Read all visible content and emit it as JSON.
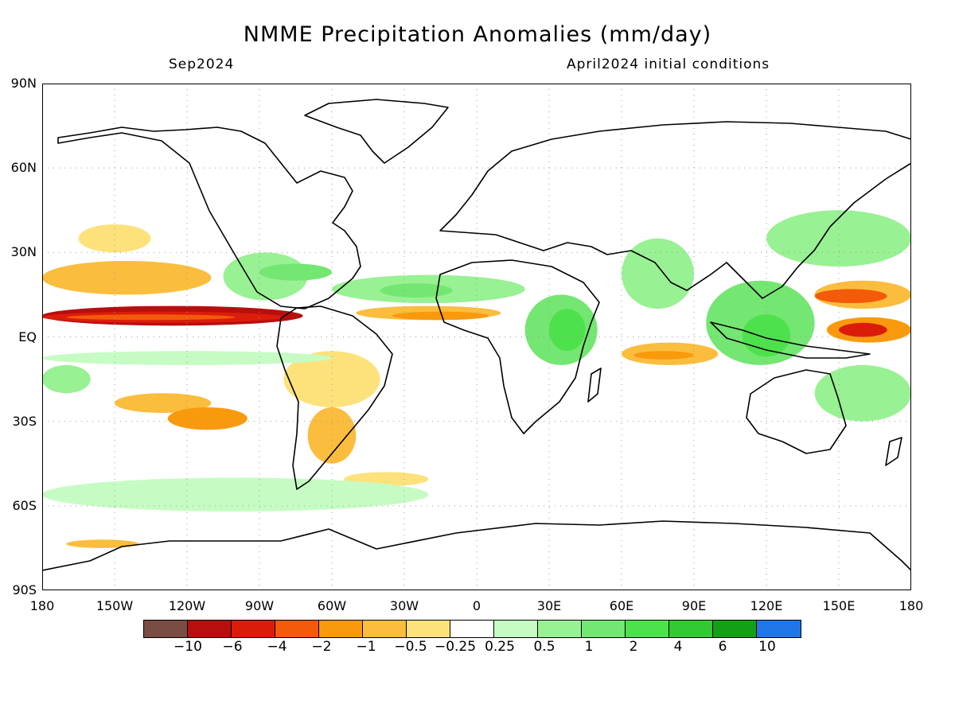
{
  "header": {
    "title": "NMME Precipitation Anomalies (mm/day)",
    "valid_month": "Sep2024",
    "initial_conditions": "April2024 initial conditions"
  },
  "axes": {
    "lat_labels": [
      "90N",
      "60N",
      "30N",
      "EQ",
      "30S",
      "60S",
      "90S"
    ],
    "lat_values": [
      90,
      60,
      30,
      0,
      -30,
      -60,
      -90
    ],
    "lon_labels": [
      "180",
      "150W",
      "120W",
      "90W",
      "60W",
      "30W",
      "0",
      "30E",
      "60E",
      "90E",
      "120E",
      "150E",
      "180"
    ],
    "lon_values": [
      -180,
      -150,
      -120,
      -90,
      -60,
      -30,
      0,
      30,
      60,
      90,
      120,
      150,
      180
    ],
    "lon_range": [
      -180,
      180
    ],
    "lat_range": [
      -90,
      90
    ],
    "grid": true
  },
  "colorbar": {
    "colors": [
      "#7a4c43",
      "#b80e0e",
      "#dc1c0a",
      "#f35a0a",
      "#f99a0d",
      "#fbbd3d",
      "#fde27c",
      "#ffffff",
      "#c6fcc4",
      "#98f193",
      "#74e672",
      "#4de24c",
      "#33c933",
      "#13a014",
      "#2076e8"
    ],
    "labels": [
      "−10",
      "−6",
      "−4",
      "−2",
      "−1",
      "−0.5",
      "−0.25",
      "0.25",
      "0.5",
      "1",
      "2",
      "4",
      "6",
      "10"
    ],
    "boundaries": [
      -10,
      -6,
      -4,
      -2,
      -1,
      -0.5,
      -0.25,
      0.25,
      0.5,
      1,
      2,
      4,
      6,
      10
    ]
  },
  "map_data": {
    "variable": "precipitation anomaly",
    "unit": "mm/day",
    "regions": [
      {
        "lon": [
          -180,
          -72
        ],
        "lat": [
          4,
          11
        ],
        "level": 1
      },
      {
        "lon": [
          -180,
          -80
        ],
        "lat": [
          5,
          9
        ],
        "level": 2
      },
      {
        "lon": [
          -170,
          -100
        ],
        "lat": [
          6,
          8
        ],
        "level": 3
      },
      {
        "lon": [
          -180,
          -110
        ],
        "lat": [
          15,
          27
        ],
        "level": 5
      },
      {
        "lon": [
          -165,
          -135
        ],
        "lat": [
          30,
          40
        ],
        "level": 6
      },
      {
        "lon": [
          -150,
          -110
        ],
        "lat": [
          -20,
          -27
        ],
        "level": 5
      },
      {
        "lon": [
          -128,
          -95
        ],
        "lat": [
          -25,
          -33
        ],
        "level": 4
      },
      {
        "lon": [
          -80,
          -40
        ],
        "lat": [
          -5,
          -25
        ],
        "level": 6
      },
      {
        "lon": [
          -70,
          -50
        ],
        "lat": [
          -25,
          -45
        ],
        "level": 5
      },
      {
        "lon": [
          -55,
          -20
        ],
        "lat": [
          -48,
          -53
        ],
        "level": 6
      },
      {
        "lon": [
          -50,
          10
        ],
        "lat": [
          6,
          11
        ],
        "level": 5
      },
      {
        "lon": [
          -35,
          5
        ],
        "lat": [
          6,
          9
        ],
        "level": 4
      },
      {
        "lon": [
          -170,
          -140
        ],
        "lat": [
          -72,
          -75
        ],
        "level": 5
      },
      {
        "lon": [
          -190,
          -20
        ],
        "lat": [
          -62,
          -50
        ],
        "level": 8
      },
      {
        "lon": [
          -180,
          -60
        ],
        "lat": [
          -5,
          -10
        ],
        "level": 8
      },
      {
        "lon": [
          -180,
          -160
        ],
        "lat": [
          -10,
          -20
        ],
        "level": 9
      },
      {
        "lon": [
          -105,
          -70
        ],
        "lat": [
          13,
          30
        ],
        "level": 9
      },
      {
        "lon": [
          -90,
          -60
        ],
        "lat": [
          20,
          26
        ],
        "level": 10
      },
      {
        "lon": [
          -60,
          20
        ],
        "lat": [
          12,
          22
        ],
        "level": 9
      },
      {
        "lon": [
          -40,
          -10
        ],
        "lat": [
          14,
          19
        ],
        "level": 10
      },
      {
        "lon": [
          20,
          50
        ],
        "lat": [
          -10,
          15
        ],
        "level": 10
      },
      {
        "lon": [
          30,
          45
        ],
        "lat": [
          -5,
          10
        ],
        "level": 11
      },
      {
        "lon": [
          60,
          90
        ],
        "lat": [
          10,
          35
        ],
        "level": 9
      },
      {
        "lon": [
          95,
          140
        ],
        "lat": [
          -10,
          20
        ],
        "level": 10
      },
      {
        "lon": [
          110,
          130
        ],
        "lat": [
          -7,
          8
        ],
        "level": 11
      },
      {
        "lon": [
          120,
          180
        ],
        "lat": [
          25,
          45
        ],
        "level": 9
      },
      {
        "lon": [
          140,
          180
        ],
        "lat": [
          -10,
          -30
        ],
        "level": 9
      },
      {
        "lon": [
          140,
          180
        ],
        "lat": [
          10,
          20
        ],
        "level": 5
      },
      {
        "lon": [
          140,
          170
        ],
        "lat": [
          12,
          17
        ],
        "level": 3
      },
      {
        "lon": [
          145,
          180
        ],
        "lat": [
          -2,
          7
        ],
        "level": 4
      },
      {
        "lon": [
          150,
          170
        ],
        "lat": [
          0,
          5
        ],
        "level": 2
      },
      {
        "lon": [
          60,
          100
        ],
        "lat": [
          -2,
          -10
        ],
        "level": 5
      },
      {
        "lon": [
          65,
          90
        ],
        "lat": [
          -5,
          -8
        ],
        "level": 4
      }
    ]
  }
}
